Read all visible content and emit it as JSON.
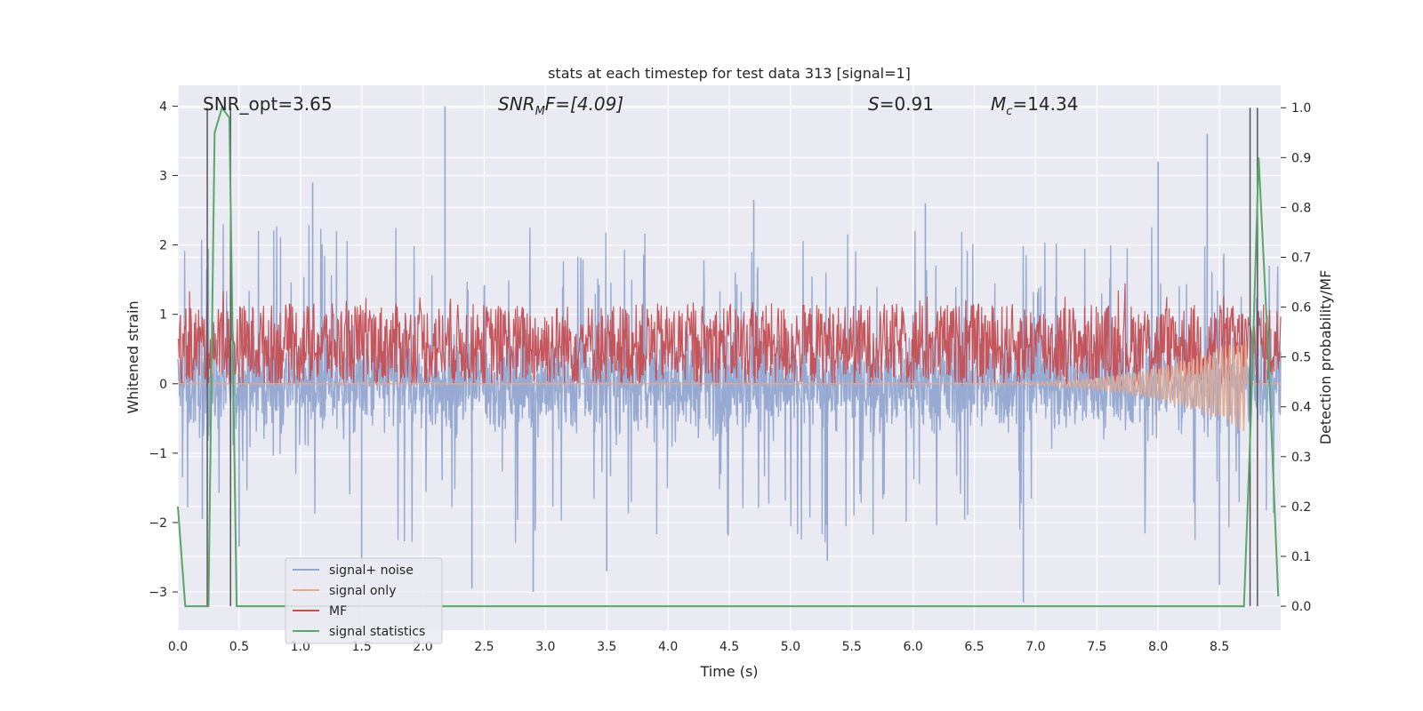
{
  "chart_data": {
    "type": "line",
    "title": "stats at each timestep for test data 313 [signal=1]",
    "xlabel": "Time (s)",
    "ylabel": "Whitened strain",
    "y2label": "Detection probability/MF",
    "xlim": [
      0.0,
      9.0
    ],
    "ylim": [
      -3.55,
      4.3
    ],
    "y2lim": [
      -0.048,
      1.045
    ],
    "xticks": [
      0.0,
      0.5,
      1.0,
      1.5,
      2.0,
      2.5,
      3.0,
      3.5,
      4.0,
      4.5,
      5.0,
      5.5,
      6.0,
      6.5,
      7.0,
      7.5,
      8.0,
      8.5
    ],
    "xtick_labels": [
      "0.0",
      "0.5",
      "1.0",
      "1.5",
      "2.0",
      "2.5",
      "3.0",
      "3.5",
      "4.0",
      "4.5",
      "5.0",
      "5.5",
      "6.0",
      "6.5",
      "7.0",
      "7.5",
      "8.0",
      "8.5"
    ],
    "yticks": [
      -3,
      -2,
      -1,
      0,
      1,
      2,
      3,
      4
    ],
    "ytick_labels": [
      "−3",
      "−2",
      "−1",
      "0",
      "1",
      "2",
      "3",
      "4"
    ],
    "y2ticks": [
      0.0,
      0.1,
      0.2,
      0.3,
      0.4,
      0.5,
      0.6,
      0.7,
      0.8,
      0.9,
      1.0
    ],
    "y2tick_labels": [
      "0.0",
      "0.1",
      "0.2",
      "0.3",
      "0.4",
      "0.5",
      "0.6",
      "0.7",
      "0.8",
      "0.9",
      "1.0"
    ],
    "grid": true,
    "legend_position": "lower-left",
    "annotations": {
      "snr_opt": "SNR_opt=3.65",
      "snr_mf_base": "SNR",
      "snr_mf_sub": "M",
      "snr_mf_rest": "F=[4.09]",
      "s_italic": "S",
      "s_rest": "=0.91",
      "mc_base": "M",
      "mc_sub": "c",
      "mc_rest": "=14.34"
    },
    "series": [
      {
        "name": "signal+ noise",
        "color": "#92a7d0",
        "axis": "left",
        "kind": "noise",
        "typical_range": [
          -1.2,
          1.3
        ],
        "spikes": [
          [
            0.2,
            -1.95
          ],
          [
            0.5,
            -2.35
          ],
          [
            1.1,
            2.9
          ],
          [
            1.5,
            -2.6
          ],
          [
            2.18,
            4.0
          ],
          [
            2.4,
            -2.95
          ],
          [
            2.9,
            -3.0
          ],
          [
            3.5,
            -2.7
          ],
          [
            4.7,
            2.65
          ],
          [
            5.3,
            -2.55
          ],
          [
            6.1,
            2.6
          ],
          [
            6.9,
            -3.15
          ],
          [
            8.0,
            3.2
          ],
          [
            8.4,
            3.6
          ],
          [
            8.5,
            -2.9
          ]
        ]
      },
      {
        "name": "signal only",
        "color": "#e6a98c",
        "axis": "left",
        "kind": "chirp",
        "start": 6.3,
        "end": 8.72,
        "max_amplitude": 0.7
      },
      {
        "name": "MF",
        "color": "#c44e52",
        "axis": "right",
        "kind": "band",
        "range": [
          0.45,
          0.6
        ]
      },
      {
        "name": "signal statistics",
        "color": "#55a868",
        "axis": "right",
        "kind": "line",
        "x": [
          0.0,
          0.06,
          0.25,
          0.3,
          0.36,
          0.42,
          0.48,
          8.7,
          8.76,
          8.82,
          8.9,
          8.98
        ],
        "y": [
          0.2,
          0.0,
          0.0,
          0.95,
          1.0,
          0.98,
          0.0,
          0.0,
          0.4,
          0.9,
          0.5,
          0.02
        ]
      }
    ],
    "vlines": {
      "color": "#555555",
      "x": [
        0.24,
        0.43,
        8.75,
        8.81
      ],
      "range_y2": [
        0.0,
        1.0
      ]
    }
  }
}
